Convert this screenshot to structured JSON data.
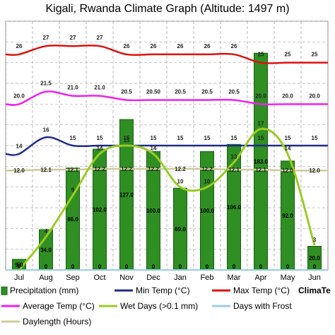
{
  "title": "Kigali, Rwanda Climate Graph (Altitude: 1497 m)",
  "brand": "ClimaTe",
  "colors": {
    "precip": "#2f8f22",
    "precip_border": "#1a5e12",
    "min_temp": "#1f2d86",
    "max_temp": "#dd1111",
    "avg_temp": "#ee22ee",
    "wet_days": "#99cc22",
    "frost": "#99ccee",
    "daylength": "#cccc99",
    "brand": "#7a2aa6"
  },
  "chart_data": {
    "type": "bar",
    "categories": [
      "Jul",
      "Aug",
      "Sep",
      "Oct",
      "Nov",
      "Dec",
      "Jan",
      "Feb",
      "Mar",
      "Apr",
      "May",
      "Jun"
    ],
    "series": [
      {
        "name": "Precipitation (mm)",
        "type": "bar",
        "values": [
          9.0,
          34.0,
          86.0,
          102.0,
          127.0,
          100.0,
          69.0,
          100.0,
          106.0,
          183.0,
          92.0,
          20.0
        ],
        "labels": [
          "9.0",
          "34.0",
          "86.0",
          "102.0",
          "127.0",
          "100.0",
          "69.0",
          "100.0",
          "106.0",
          "183.0",
          "92.0",
          "20.0"
        ]
      },
      {
        "name": "Min Temp (°C)",
        "type": "line",
        "values": [
          14,
          16,
          15,
          15,
          15,
          15,
          15,
          15,
          15,
          15,
          15,
          15
        ],
        "labels": [
          "14",
          "16",
          "15",
          "15",
          "15",
          "15",
          "15",
          "15",
          "15",
          "15",
          "15",
          "15"
        ]
      },
      {
        "name": "Max Temp (°C)",
        "type": "line",
        "values": [
          26,
          27,
          27,
          27,
          26,
          26,
          26,
          26,
          26,
          25,
          25,
          25
        ],
        "labels": [
          "26",
          "27",
          "27",
          "27",
          "26",
          "26",
          "26",
          "26",
          "26",
          "25",
          "25",
          "25"
        ]
      },
      {
        "name": "Average Temp (°C)",
        "type": "line",
        "values": [
          20.0,
          21.5,
          21.0,
          21.0,
          20.5,
          20.5,
          20.5,
          20.5,
          20.5,
          20.0,
          20.0,
          20.0
        ],
        "labels": [
          "20.0",
          "21.5",
          "21.0",
          "21.0",
          "20.5",
          "20.50",
          "20.5",
          "20.5",
          "20.5",
          "20.0",
          "20.0",
          "20.0"
        ]
      },
      {
        "name": "Wet Days (>0.1 mm)",
        "type": "line",
        "values": [
          0,
          4,
          9,
          14,
          15,
          14,
          10,
          10,
          13,
          17,
          14,
          3
        ],
        "labels": [
          "0",
          "4",
          "9",
          "14",
          "15",
          "14",
          "10",
          "10",
          "13",
          "17",
          "14",
          "3"
        ]
      },
      {
        "name": "Days with Frost",
        "type": "line",
        "values": [
          0,
          0,
          0,
          0,
          0,
          0,
          0,
          0,
          0,
          0,
          0,
          0
        ],
        "labels": [
          "0",
          "0",
          "0",
          "0",
          "0",
          "0",
          "0",
          "0",
          "0",
          "0",
          "0",
          "0"
        ]
      },
      {
        "name": "Daylength (Hours)",
        "type": "line",
        "values": [
          12.0,
          12.1,
          12.1,
          12.2,
          12.2,
          12.2,
          12.2,
          12.2,
          12.1,
          12.1,
          12.0,
          12.0
        ],
        "labels": [
          "12.0",
          "12.1",
          "12.1",
          "12.2",
          "12.2",
          "12.2",
          "12.2",
          "12.2",
          "12.1",
          "12.1",
          "12.0",
          "12.0"
        ]
      }
    ],
    "temp_ylim": [
      0,
      30
    ],
    "precip_ylim": [
      0,
      210
    ],
    "grid": true,
    "legend_position": "bottom"
  }
}
